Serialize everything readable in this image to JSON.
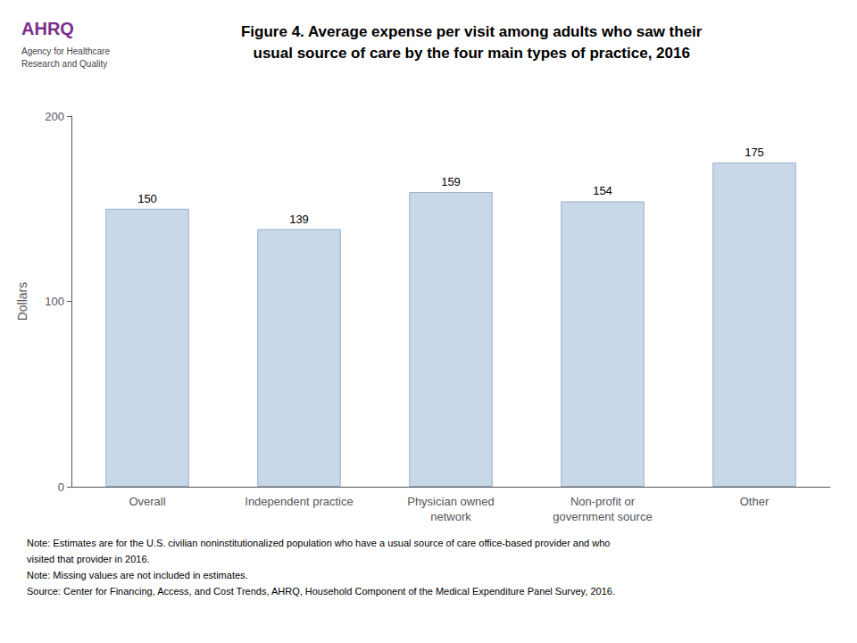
{
  "chart_data": {
    "type": "bar",
    "title": "Figure 4. Average expense per visit among adults who saw their\nusual source of care by the four main types of practice, 2016",
    "categories": [
      "Overall",
      "Independent practice",
      "Physician owned\nnetwork",
      "Non-profit or\ngovernment source",
      "Other"
    ],
    "values": [
      150,
      139,
      159,
      154,
      175
    ],
    "color": "#c8d8e8",
    "ylabel": "Dollars",
    "ylim": [
      0,
      200
    ],
    "yticks": [
      0,
      100,
      200
    ],
    "grid": false,
    "data_labels": true,
    "annotations": [
      "AHRQ",
      "Agency for Healthcare\nResearch and Quality",
      "Note: Estimates are for the U.S. civilian noninstitutionalized population who have a usual source of care office-based provider and who",
      "visited that provider in 2016.",
      "Note: Missing values are not included in estimates.",
      "Source: Center for Financing, Access, and Cost Trends, AHRQ, Household Component of the Medical Expenditure Panel Survey, 2016."
    ]
  }
}
